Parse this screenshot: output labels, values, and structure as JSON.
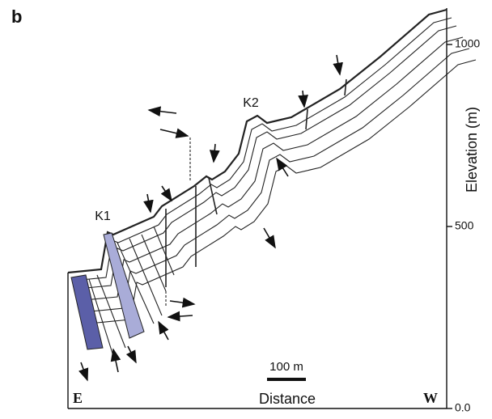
{
  "panel_label": "b",
  "labels": {
    "k1": "K1",
    "k2": "K2",
    "scale_bar": "100 m",
    "distance": "Distance",
    "east": "E",
    "west": "W"
  },
  "elevation_axis": {
    "label": "Elevation (m)",
    "ylim": [
      0,
      1100
    ],
    "yticks": [
      {
        "value": 0,
        "label": "0.0"
      },
      500,
      1000
    ]
  }
}
